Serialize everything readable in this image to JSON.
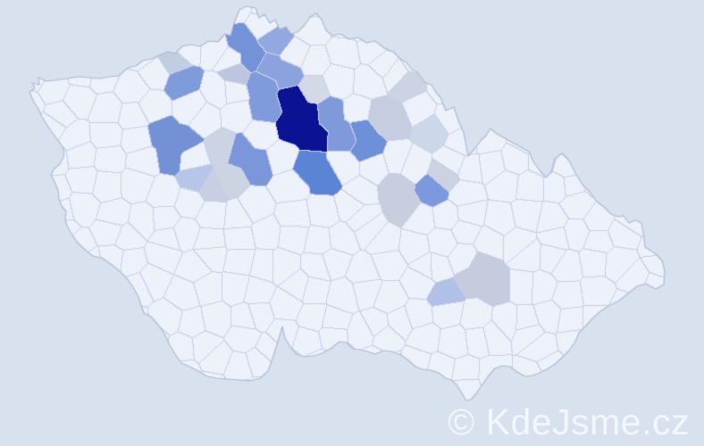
{
  "watermark": {
    "text": "© KdeJsme.cz",
    "color": "#ffffff",
    "opacity": 0.72
  },
  "map": {
    "country": "Czech Republic choropleth (municipality-level distribution map)",
    "background_color": "#d8e1ee",
    "land_color": "#edf1f9",
    "cell_border_color": "#c8d0e6",
    "country_outline_color": "#aab5d2",
    "palette": {
      "highest": "#0b1394",
      "high": "#5c84d4",
      "medium": "#7491d6",
      "low": "#8ba2de",
      "lower": "#b7c6e8",
      "sparse": "#c8cfe2"
    },
    "regions": [
      {
        "color": "#0b1394",
        "pts": [
          [
            330,
            112
          ],
          [
            345,
            130
          ],
          [
            327,
            142
          ],
          [
            348,
            150
          ]
        ]
      },
      {
        "color": "#7491d6",
        "pts": [
          [
            182,
            150
          ],
          [
            205,
            160
          ],
          [
            192,
            174
          ]
        ]
      },
      {
        "color": "#7f9bdc",
        "pts": [
          [
            292,
            93
          ],
          [
            296,
            122
          ]
        ]
      },
      {
        "color": "#7f9adb",
        "pts": [
          [
            368,
            128
          ],
          [
            386,
            152
          ]
        ]
      },
      {
        "color": "#6e90d8",
        "pts": [
          [
            405,
            145
          ],
          [
            410,
            166
          ]
        ]
      },
      {
        "color": "#5c84d4",
        "pts": [
          [
            345,
            188
          ],
          [
            365,
            200
          ]
        ]
      },
      {
        "color": "#7b97da",
        "pts": [
          [
            268,
            170
          ],
          [
            288,
            184
          ]
        ]
      },
      {
        "color": "#7e9cdb",
        "pts": [
          [
            203,
            92
          ]
        ]
      },
      {
        "color": "#7392d8",
        "pts": [
          [
            268,
            48
          ],
          [
            282,
            66
          ]
        ]
      },
      {
        "color": "#93a8e0",
        "pts": [
          [
            308,
            44
          ]
        ]
      },
      {
        "color": "#8ba2de",
        "pts": [
          [
            300,
            76
          ],
          [
            323,
            82
          ]
        ]
      },
      {
        "color": "#7b99dc",
        "pts": [
          [
            485,
            213
          ]
        ]
      },
      {
        "color": "#b7c6e8",
        "pts": [
          [
            219,
            200
          ]
        ]
      },
      {
        "color": "#cdd7ea",
        "pts": [
          [
            483,
            145
          ]
        ]
      },
      {
        "color": "#b0c0e6",
        "pts": [
          [
            497,
            331
          ]
        ]
      },
      {
        "color": "#bcc6de",
        "pts": [
          [
            264,
            83
          ]
        ]
      },
      {
        "color": "#c3cde2",
        "pts": [
          [
            194,
            68
          ]
        ]
      },
      {
        "color": "#d4d9e8",
        "pts": [
          [
            350,
            100
          ]
        ]
      },
      {
        "color": "#c6cde0",
        "pts": [
          [
            424,
            130
          ],
          [
            441,
            134
          ]
        ]
      },
      {
        "color": "#ccd3e3",
        "pts": [
          [
            456,
            95
          ]
        ]
      },
      {
        "color": "#ccd2e2",
        "pts": [
          [
            498,
            198
          ]
        ]
      },
      {
        "color": "#c8cede",
        "pts": [
          [
            443,
            210
          ],
          [
            452,
            232
          ]
        ]
      },
      {
        "color": "#ccd3e3",
        "pts": [
          [
            250,
            165
          ],
          [
            256,
            202
          ]
        ]
      },
      {
        "color": "#c8cfe2",
        "pts": [
          [
            238,
            211
          ]
        ]
      },
      {
        "color": "#c6cbde",
        "pts": [
          [
            538,
            298
          ],
          [
            554,
            321
          ],
          [
            531,
            311
          ]
        ]
      }
    ]
  }
}
